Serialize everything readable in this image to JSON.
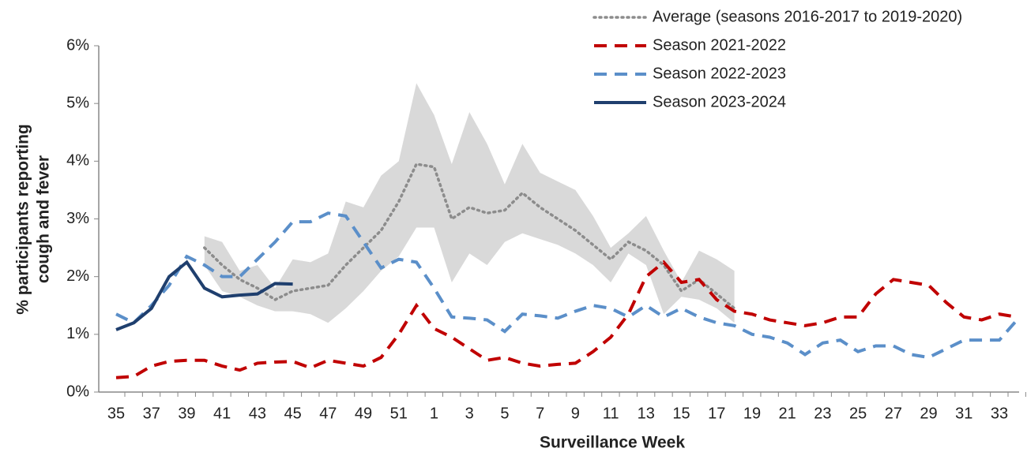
{
  "chart_data": {
    "type": "line",
    "ylabel": [
      "% participants reporting",
      "cough and fever"
    ],
    "xlabel": "Surveillance Week",
    "categories": [
      "35",
      null,
      "37",
      null,
      "39",
      null,
      "41",
      null,
      "43",
      null,
      "45",
      null,
      "47",
      null,
      "49",
      null,
      "51",
      null,
      "1",
      null,
      "3",
      null,
      "5",
      null,
      "7",
      null,
      "9",
      null,
      "11",
      null,
      "13",
      null,
      "15",
      null,
      "17",
      null,
      "19",
      null,
      "21",
      null,
      "23",
      null,
      "25",
      null,
      "27",
      null,
      "29",
      null,
      "31",
      null,
      "33",
      null
    ],
    "ylim": [
      0,
      6
    ],
    "yticks": [
      {
        "value": 0,
        "label": "0%"
      },
      {
        "value": 1,
        "label": "1%"
      },
      {
        "value": 2,
        "label": "2%"
      },
      {
        "value": 3,
        "label": "3%"
      },
      {
        "value": 4,
        "label": "4%"
      },
      {
        "value": 5,
        "label": "5%"
      },
      {
        "value": 6,
        "label": "6%"
      }
    ],
    "series": [
      {
        "name": "Average (seasons 2016-2017 to 2019-2020)",
        "color": "#8c8c8c",
        "style": "dotted",
        "band_color": "#d9d9d9",
        "values": [
          null,
          null,
          null,
          null,
          null,
          2.5,
          2.2,
          1.95,
          1.8,
          1.6,
          1.75,
          1.8,
          1.85,
          2.2,
          2.5,
          2.8,
          3.3,
          3.95,
          3.9,
          3.0,
          3.2,
          3.1,
          3.15,
          3.45,
          3.2,
          3.0,
          2.8,
          2.55,
          2.3,
          2.6,
          2.45,
          2.2,
          1.75,
          1.95,
          1.7,
          1.45,
          null,
          null,
          null,
          null,
          null,
          null,
          null,
          null,
          null,
          null,
          null,
          null,
          null,
          null,
          null,
          null
        ],
        "range_high": [
          null,
          null,
          null,
          null,
          null,
          2.7,
          2.6,
          2.1,
          2.2,
          1.8,
          2.3,
          2.25,
          2.4,
          3.3,
          3.2,
          3.75,
          4.0,
          5.35,
          4.8,
          3.95,
          4.85,
          4.3,
          3.6,
          4.3,
          3.8,
          3.65,
          3.5,
          3.05,
          2.5,
          2.75,
          3.05,
          2.45,
          1.9,
          2.45,
          2.3,
          2.1,
          null,
          null,
          null,
          null,
          null,
          null,
          null,
          null,
          null,
          null,
          null,
          null,
          null,
          null,
          null,
          null
        ],
        "range_low": [
          null,
          null,
          null,
          null,
          null,
          2.2,
          1.75,
          1.65,
          1.5,
          1.4,
          1.4,
          1.35,
          1.2,
          1.45,
          1.75,
          2.1,
          2.35,
          2.85,
          2.85,
          1.9,
          2.4,
          2.2,
          2.6,
          2.75,
          2.65,
          2.55,
          2.4,
          2.2,
          1.9,
          2.4,
          2.2,
          1.35,
          1.65,
          1.6,
          1.45,
          1.2,
          null,
          null,
          null,
          null,
          null,
          null,
          null,
          null,
          null,
          null,
          null,
          null,
          null,
          null,
          null,
          null
        ]
      },
      {
        "name": "Season 2021-2022",
        "color": "#c00000",
        "style": "dashed",
        "values": [
          0.25,
          0.27,
          0.45,
          0.53,
          0.55,
          0.55,
          0.45,
          0.38,
          0.5,
          0.52,
          0.53,
          0.42,
          0.55,
          0.5,
          0.45,
          0.6,
          1.0,
          1.5,
          1.1,
          0.95,
          0.75,
          0.55,
          0.6,
          0.5,
          0.45,
          0.48,
          0.5,
          0.7,
          0.95,
          1.35,
          2.0,
          2.25,
          1.9,
          1.95,
          1.6,
          1.4,
          1.35,
          1.25,
          1.2,
          1.15,
          1.2,
          1.3,
          1.3,
          1.7,
          1.95,
          1.9,
          1.85,
          1.55,
          1.3,
          1.25,
          1.35,
          1.3
        ]
      },
      {
        "name": "Season 2022-2023",
        "color": "#5b8fc9",
        "style": "dashed",
        "values": [
          1.35,
          1.2,
          1.5,
          1.85,
          2.35,
          2.2,
          2.0,
          2.0,
          2.3,
          2.6,
          2.95,
          2.95,
          3.1,
          3.05,
          2.6,
          2.15,
          2.3,
          2.25,
          1.8,
          1.3,
          1.28,
          1.25,
          1.05,
          1.35,
          1.32,
          1.28,
          1.4,
          1.5,
          1.45,
          1.3,
          1.5,
          1.3,
          1.45,
          1.3,
          1.2,
          1.15,
          1.0,
          0.95,
          0.85,
          0.65,
          0.85,
          0.9,
          0.7,
          0.8,
          0.8,
          0.65,
          0.6,
          0.75,
          0.9,
          0.9,
          0.9,
          1.25
        ]
      },
      {
        "name": "Season 2023-2024",
        "color": "#1f3f6e",
        "style": "solid",
        "values": [
          1.08,
          1.2,
          1.45,
          2.0,
          2.25,
          1.8,
          1.65,
          1.68,
          1.7,
          1.88,
          1.87,
          null,
          null,
          null,
          null,
          null,
          null,
          null,
          null,
          null,
          null,
          null,
          null,
          null,
          null,
          null,
          null,
          null,
          null,
          null,
          null,
          null,
          null,
          null,
          null,
          null,
          null,
          null,
          null,
          null,
          null,
          null,
          null,
          null,
          null,
          null,
          null,
          null,
          null,
          null,
          null,
          null
        ]
      }
    ]
  }
}
